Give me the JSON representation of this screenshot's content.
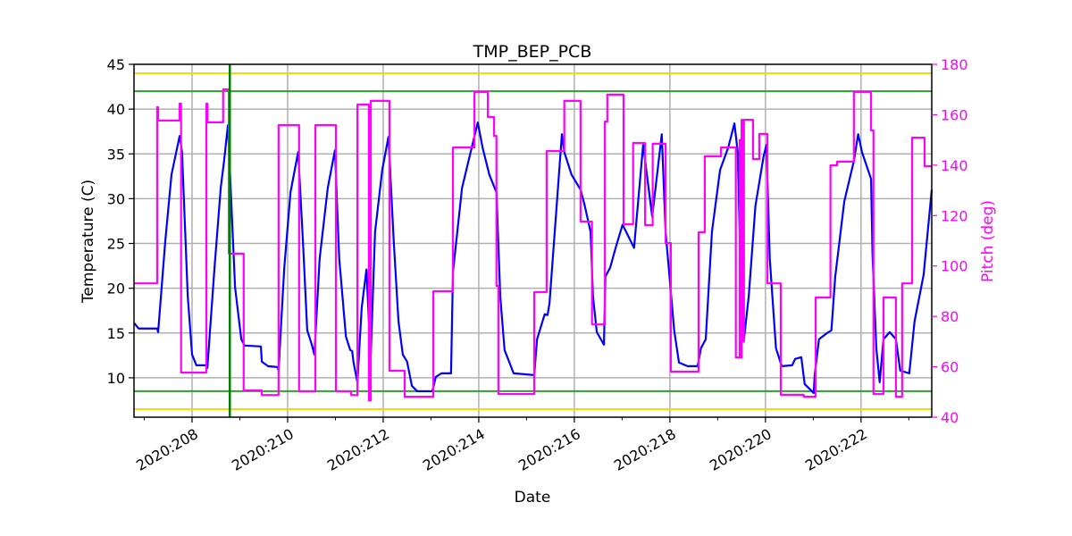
{
  "chart_data": {
    "type": "line",
    "title": "TMP_BEP_PCB",
    "xlabel": "Date",
    "ylabel": "Temperature (C)",
    "y2label": "Pitch (deg)",
    "xlim": [
      206.785,
      223.48
    ],
    "ylim": [
      5.6,
      45
    ],
    "y2lim": [
      40,
      180
    ],
    "x_ticks": [
      208,
      210,
      212,
      214,
      216,
      218,
      220,
      222
    ],
    "x_tick_labels": [
      "2020:208",
      "2020:210",
      "2020:212",
      "2020:214",
      "2020:216",
      "2020:218",
      "2020:220",
      "2020:222"
    ],
    "x_minor_ticks": [
      207,
      209,
      211,
      213,
      215,
      217,
      219,
      221,
      223
    ],
    "y_ticks": [
      10,
      15,
      20,
      25,
      30,
      35,
      40,
      45
    ],
    "y2_ticks": [
      40,
      60,
      80,
      100,
      120,
      140,
      160,
      180
    ],
    "grid": true,
    "colors": {
      "temperature": "#0000ff",
      "pitch": "#ff00ff",
      "yellow_limit": "#ffd700",
      "green_limit": "#2ca02c",
      "marker_line": "#008000",
      "grid": "#b0b0b0"
    },
    "limit_lines": [
      {
        "kind": "yellow",
        "value": 44
      },
      {
        "kind": "green",
        "value": 42
      },
      {
        "kind": "green",
        "value": 8.5
      },
      {
        "kind": "yellow",
        "value": 6.5
      }
    ],
    "vertical_line": 208.79,
    "series": [
      {
        "axis": "left",
        "color": "#0000ff",
        "points": [
          [
            206.79,
            16.1
          ],
          [
            206.88,
            15.5
          ],
          [
            207.27,
            15.5
          ],
          [
            207.29,
            15.1
          ],
          [
            207.44,
            25.3
          ],
          [
            207.57,
            32.7
          ],
          [
            207.74,
            37.0
          ],
          [
            207.79,
            35.2
          ],
          [
            207.91,
            19.1
          ],
          [
            208.0,
            12.6
          ],
          [
            208.09,
            11.4
          ],
          [
            208.3,
            11.4
          ],
          [
            208.32,
            11.1
          ],
          [
            208.47,
            22.3
          ],
          [
            208.6,
            31.2
          ],
          [
            208.67,
            34.2
          ],
          [
            208.75,
            38.2
          ],
          [
            208.8,
            32.2
          ],
          [
            208.9,
            20.1
          ],
          [
            209.03,
            14.3
          ],
          [
            209.1,
            13.6
          ],
          [
            209.44,
            13.5
          ],
          [
            209.46,
            11.8
          ],
          [
            209.59,
            11.3
          ],
          [
            209.79,
            11.2
          ],
          [
            209.81,
            10.8
          ],
          [
            209.93,
            22.3
          ],
          [
            210.06,
            30.7
          ],
          [
            210.22,
            35.2
          ],
          [
            210.32,
            25.3
          ],
          [
            210.41,
            15.3
          ],
          [
            210.5,
            13.8
          ],
          [
            210.56,
            12.6
          ],
          [
            210.67,
            23.3
          ],
          [
            210.84,
            31.2
          ],
          [
            210.99,
            35.4
          ],
          [
            211.08,
            23.3
          ],
          [
            211.22,
            14.6
          ],
          [
            211.31,
            13.1
          ],
          [
            211.35,
            13.0
          ],
          [
            211.38,
            11.7
          ],
          [
            211.46,
            9.5
          ],
          [
            211.55,
            17.8
          ],
          [
            211.65,
            22.1
          ],
          [
            211.7,
            16.3
          ],
          [
            211.74,
            12.5
          ],
          [
            211.83,
            26.3
          ],
          [
            211.98,
            33.2
          ],
          [
            212.11,
            36.9
          ],
          [
            212.22,
            25.3
          ],
          [
            212.32,
            16.3
          ],
          [
            212.41,
            12.6
          ],
          [
            212.5,
            11.8
          ],
          [
            212.6,
            9.1
          ],
          [
            212.71,
            8.5
          ],
          [
            213.03,
            8.5
          ],
          [
            213.1,
            10.1
          ],
          [
            213.22,
            10.5
          ],
          [
            213.42,
            10.5
          ],
          [
            213.46,
            21.8
          ],
          [
            213.65,
            31.2
          ],
          [
            213.83,
            35.2
          ],
          [
            213.98,
            38.5
          ],
          [
            214.08,
            35.7
          ],
          [
            214.22,
            32.7
          ],
          [
            214.37,
            30.7
          ],
          [
            214.45,
            19.1
          ],
          [
            214.54,
            13.1
          ],
          [
            214.73,
            10.5
          ],
          [
            215.16,
            10.3
          ],
          [
            215.22,
            14.3
          ],
          [
            215.38,
            17.1
          ],
          [
            215.44,
            17.0
          ],
          [
            215.48,
            18.3
          ],
          [
            215.63,
            29.2
          ],
          [
            215.74,
            37.2
          ],
          [
            215.79,
            35.2
          ],
          [
            215.94,
            32.7
          ],
          [
            216.13,
            31.0
          ],
          [
            216.21,
            29.4
          ],
          [
            216.34,
            26.3
          ],
          [
            216.39,
            19.1
          ],
          [
            216.47,
            15.1
          ],
          [
            216.62,
            13.7
          ],
          [
            216.65,
            21.3
          ],
          [
            216.75,
            22.3
          ],
          [
            216.88,
            24.8
          ],
          [
            217.01,
            27.1
          ],
          [
            217.25,
            24.5
          ],
          [
            217.44,
            36.0
          ],
          [
            217.63,
            28.0
          ],
          [
            217.83,
            37.2
          ],
          [
            217.91,
            26.3
          ],
          [
            218.09,
            15.3
          ],
          [
            218.19,
            11.7
          ],
          [
            218.37,
            11.3
          ],
          [
            218.58,
            11.3
          ],
          [
            218.65,
            13.3
          ],
          [
            218.75,
            14.3
          ],
          [
            218.88,
            26.3
          ],
          [
            219.05,
            33.2
          ],
          [
            219.22,
            35.7
          ],
          [
            219.35,
            38.4
          ],
          [
            219.42,
            35.2
          ],
          [
            219.5,
            17.3
          ],
          [
            219.55,
            14.3
          ],
          [
            219.65,
            19.1
          ],
          [
            219.79,
            29.2
          ],
          [
            219.96,
            34.7
          ],
          [
            220.02,
            36.0
          ],
          [
            220.09,
            23.3
          ],
          [
            220.22,
            13.3
          ],
          [
            220.34,
            11.3
          ],
          [
            220.56,
            11.4
          ],
          [
            220.62,
            12.1
          ],
          [
            220.75,
            12.3
          ],
          [
            220.82,
            9.3
          ],
          [
            221.01,
            8.3
          ],
          [
            221.03,
            10.3
          ],
          [
            221.12,
            14.3
          ],
          [
            221.29,
            15.0
          ],
          [
            221.38,
            15.3
          ],
          [
            221.46,
            21.3
          ],
          [
            221.65,
            29.7
          ],
          [
            221.85,
            34.2
          ],
          [
            221.94,
            37.2
          ],
          [
            222.02,
            35.2
          ],
          [
            222.21,
            32.2
          ],
          [
            222.24,
            23.8
          ],
          [
            222.32,
            13.3
          ],
          [
            222.39,
            9.5
          ],
          [
            222.47,
            14.3
          ],
          [
            222.6,
            15.1
          ],
          [
            222.73,
            14.3
          ],
          [
            222.82,
            10.8
          ],
          [
            223.01,
            10.5
          ],
          [
            223.12,
            16.3
          ],
          [
            223.31,
            21.5
          ],
          [
            223.48,
            31.0
          ]
        ]
      },
      {
        "axis": "right",
        "color": "#ff00ff",
        "step": true,
        "points": [
          [
            206.79,
            93.1
          ],
          [
            207.27,
            163.0
          ],
          [
            207.29,
            157.7
          ],
          [
            207.74,
            164.4
          ],
          [
            207.77,
            57.7
          ],
          [
            208.3,
            164.4
          ],
          [
            208.32,
            157.0
          ],
          [
            208.65,
            170.1
          ],
          [
            208.77,
            104.9
          ],
          [
            209.08,
            50.6
          ],
          [
            209.46,
            48.8
          ],
          [
            209.81,
            155.9
          ],
          [
            210.24,
            50.3
          ],
          [
            210.58,
            155.9
          ],
          [
            211.01,
            50.3
          ],
          [
            211.33,
            48.8
          ],
          [
            211.46,
            164.0
          ],
          [
            211.7,
            46.7
          ],
          [
            211.74,
            165.5
          ],
          [
            212.13,
            58.4
          ],
          [
            212.45,
            48.1
          ],
          [
            213.05,
            90.0
          ],
          [
            213.46,
            147.0
          ],
          [
            213.91,
            169.0
          ],
          [
            214.19,
            159.1
          ],
          [
            214.32,
            151.6
          ],
          [
            214.37,
            92.1
          ],
          [
            214.41,
            49.2
          ],
          [
            215.16,
            89.6
          ],
          [
            215.42,
            145.6
          ],
          [
            215.79,
            165.5
          ],
          [
            216.13,
            117.6
          ],
          [
            216.37,
            76.8
          ],
          [
            216.64,
            157.3
          ],
          [
            216.69,
            168.0
          ],
          [
            217.03,
            116.5
          ],
          [
            217.23,
            148.8
          ],
          [
            217.48,
            116.2
          ],
          [
            217.64,
            148.5
          ],
          [
            217.91,
            109.1
          ],
          [
            218.02,
            58.1
          ],
          [
            218.6,
            113.4
          ],
          [
            218.73,
            143.5
          ],
          [
            219.07,
            147.0
          ],
          [
            219.38,
            63.7
          ],
          [
            219.46,
            150.0
          ],
          [
            219.48,
            63.7
          ],
          [
            219.5,
            158.0
          ],
          [
            219.52,
            70.0
          ],
          [
            219.55,
            158.0
          ],
          [
            219.74,
            142.4
          ],
          [
            219.87,
            152.4
          ],
          [
            220.04,
            93.1
          ],
          [
            220.32,
            48.9
          ],
          [
            220.8,
            48.1
          ],
          [
            221.05,
            87.5
          ],
          [
            221.36,
            139.9
          ],
          [
            221.5,
            141.4
          ],
          [
            221.85,
            169.0
          ],
          [
            222.21,
            153.8
          ],
          [
            222.26,
            49.2
          ],
          [
            222.47,
            87.5
          ],
          [
            222.73,
            48.1
          ],
          [
            222.86,
            93.1
          ],
          [
            223.07,
            150.9
          ],
          [
            223.33,
            139.6
          ],
          [
            223.48,
            139.6
          ]
        ]
      }
    ]
  }
}
